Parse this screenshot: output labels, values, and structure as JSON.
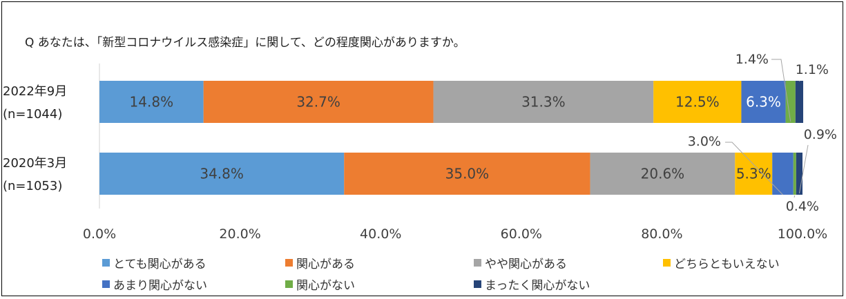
{
  "chart_data": {
    "type": "bar",
    "orientation": "horizontal",
    "stacked": true,
    "title": "Q あなたは、「新型コロナウイルス感染症」に関して、どの程度関心がありますか。",
    "categories": [
      {
        "line1": "2022年9月",
        "line2": "(n=1044)"
      },
      {
        "line1": "2020年3月",
        "line2": "(n=1053)"
      }
    ],
    "series": [
      {
        "name": "とても関心がある",
        "color": "#5B9BD5",
        "values": [
          14.8,
          34.8
        ],
        "labels": [
          "14.8%",
          "34.8%"
        ]
      },
      {
        "name": "関心がある",
        "color": "#ED7D31",
        "values": [
          32.7,
          35.0
        ],
        "labels": [
          "32.7%",
          "35.0%"
        ]
      },
      {
        "name": "やや関心がある",
        "color": "#A5A5A5",
        "values": [
          31.3,
          20.6
        ],
        "labels": [
          "31.3%",
          "20.6%"
        ]
      },
      {
        "name": "どちらともいえない",
        "color": "#FFC000",
        "values": [
          12.5,
          5.3
        ],
        "labels": [
          "12.5%",
          "5.3%"
        ]
      },
      {
        "name": "あまり関心がない",
        "color": "#4472C4",
        "values": [
          6.3,
          3.0
        ],
        "labels": [
          "6.3%",
          "3.0%"
        ]
      },
      {
        "name": "関心がない",
        "color": "#70AD47",
        "values": [
          1.4,
          0.4
        ],
        "labels": [
          "1.4%",
          "0.4%"
        ]
      },
      {
        "name": "まったく関心がない",
        "color": "#264478",
        "values": [
          1.1,
          0.9
        ],
        "labels": [
          "1.1%",
          "0.9%"
        ]
      }
    ],
    "xlim": [
      0,
      100
    ],
    "xticks": [
      "0.0%",
      "20.0%",
      "40.0%",
      "60.0%",
      "80.0%",
      "100.0%"
    ],
    "legend_position": "bottom"
  }
}
